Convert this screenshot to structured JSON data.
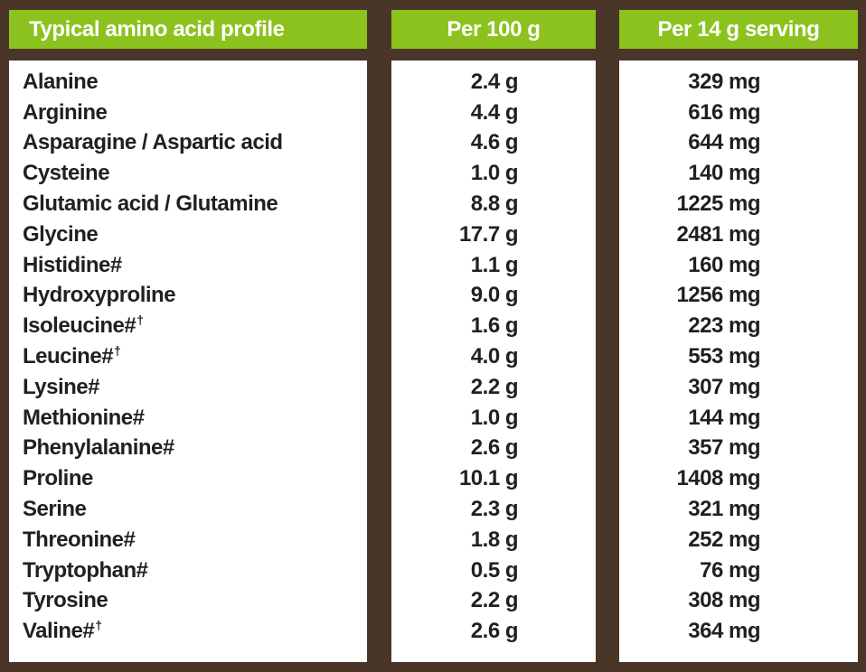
{
  "colors": {
    "background": "#4A3628",
    "header_green": "#8CC21E",
    "panel_white": "#FFFFFF",
    "text_dark": "#231F20",
    "header_text": "#FFFFFF"
  },
  "table": {
    "headers": [
      {
        "label": "Typical amino acid profile"
      },
      {
        "label": "Per 100 g"
      },
      {
        "label": "Per 14 g serving"
      }
    ],
    "rows": [
      {
        "name": "Alanine",
        "sup": "",
        "per_100g": "2.4 g",
        "per_serving": "329 mg"
      },
      {
        "name": "Arginine",
        "sup": "",
        "per_100g": "4.4 g",
        "per_serving": "616 mg"
      },
      {
        "name": "Asparagine / Aspartic acid",
        "sup": "",
        "per_100g": "4.6 g",
        "per_serving": "644 mg"
      },
      {
        "name": "Cysteine",
        "sup": "",
        "per_100g": "1.0 g",
        "per_serving": "140 mg"
      },
      {
        "name": "Glutamic acid / Glutamine",
        "sup": "",
        "per_100g": "8.8 g",
        "per_serving": "1225 mg"
      },
      {
        "name": "Glycine",
        "sup": "",
        "per_100g": "17.7 g",
        "per_serving": "2481 mg"
      },
      {
        "name": "Histidine#",
        "sup": "",
        "per_100g": "1.1 g",
        "per_serving": "160 mg"
      },
      {
        "name": "Hydroxyproline",
        "sup": "",
        "per_100g": "9.0 g",
        "per_serving": "1256 mg"
      },
      {
        "name": "Isoleucine#",
        "sup": "†",
        "per_100g": "1.6 g",
        "per_serving": "223 mg"
      },
      {
        "name": "Leucine#",
        "sup": "†",
        "per_100g": "4.0 g",
        "per_serving": "553 mg"
      },
      {
        "name": "Lysine#",
        "sup": "",
        "per_100g": "2.2 g",
        "per_serving": "307 mg"
      },
      {
        "name": "Methionine#",
        "sup": "",
        "per_100g": "1.0 g",
        "per_serving": "144 mg"
      },
      {
        "name": "Phenylalanine#",
        "sup": "",
        "per_100g": "2.6 g",
        "per_serving": "357 mg"
      },
      {
        "name": "Proline",
        "sup": "",
        "per_100g": "10.1 g",
        "per_serving": "1408 mg"
      },
      {
        "name": "Serine",
        "sup": "",
        "per_100g": "2.3 g",
        "per_serving": "321 mg"
      },
      {
        "name": "Threonine#",
        "sup": "",
        "per_100g": "1.8 g",
        "per_serving": "252 mg"
      },
      {
        "name": "Tryptophan#",
        "sup": "",
        "per_100g": "0.5 g",
        "per_serving": "76 mg"
      },
      {
        "name": "Tyrosine",
        "sup": "",
        "per_100g": "2.2 g",
        "per_serving": "308 mg"
      },
      {
        "name": "Valine#",
        "sup": "†",
        "per_100g": "2.6 g",
        "per_serving": "364 mg"
      }
    ]
  }
}
